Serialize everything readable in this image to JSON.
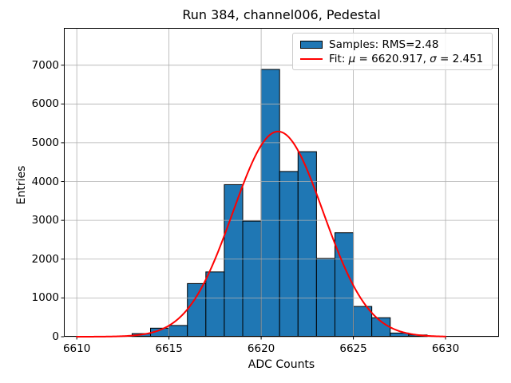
{
  "chart_data": {
    "type": "bar",
    "subtype": "histogram-with-gaussian-fit",
    "title": "Run 384, channel006, Pedestal",
    "xlabel": "ADC Counts",
    "ylabel": "Entries",
    "xlim": [
      6609.3,
      6632.9
    ],
    "ylim": [
      0,
      7960
    ],
    "xticks": [
      6610,
      6615,
      6620,
      6625,
      6630
    ],
    "yticks": [
      0,
      1000,
      2000,
      3000,
      4000,
      5000,
      6000,
      7000
    ],
    "grid": true,
    "grid_color": "#b0b0b0",
    "legend_position": "upper right",
    "histogram": {
      "label": "Samples: RMS=2.48",
      "bin_edges": [
        6613,
        6614,
        6615,
        6616,
        6617,
        6618,
        6619,
        6620,
        6621,
        6622,
        6623,
        6624,
        6625,
        6626,
        6627,
        6628,
        6629
      ],
      "counts": [
        80,
        220,
        290,
        1370,
        1670,
        3920,
        2980,
        6890,
        4260,
        4770,
        2020,
        2680,
        780,
        490,
        95,
        45
      ],
      "fill_color": "#1f77b4",
      "edge_color": "#000000"
    },
    "fit": {
      "label": "Fit: μ = 6620.917, σ = 2.451",
      "curve": "gaussian",
      "mu": 6620.917,
      "sigma": 2.451,
      "amplitude": 5290,
      "x_range": [
        6610,
        6630
      ],
      "color": "#ff0000"
    }
  },
  "legend": {
    "fit_parts": {
      "prefix": "Fit: ",
      "mu_symbol": "μ",
      "mid": " = 6620.917, ",
      "sigma_symbol": "σ",
      "suffix": " = 2.451"
    }
  }
}
